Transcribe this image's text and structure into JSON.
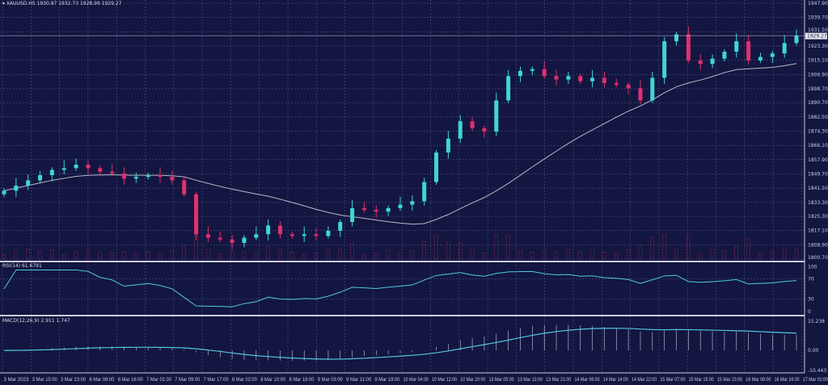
{
  "symbol_header": {
    "symbol": "XAUUSD.HS",
    "ohlc": "1930.87 1932.73 1928.99 1929.27"
  },
  "current_price": "1929.27",
  "rsi_header": "RSI(14) 61.6791",
  "macd_header": "MACD(12,26,9) 2.911 1.747",
  "colors": {
    "background": "#131640",
    "bull": "#3fd6d6",
    "bear": "#e0306e",
    "ma": "#b8b8c8",
    "indicator_line": "#4fc8e0",
    "grid": "#5a6090"
  },
  "chart_data": {
    "type": "candlestick",
    "price_axis": {
      "ylim": [
        1800.7,
        1947.9
      ],
      "ticks": [
        "1947.90",
        "1939.70",
        "1931.50",
        "1923.30",
        "1915.10",
        "1906.90",
        "1898.70",
        "1890.70",
        "1882.50",
        "1874.30",
        "1866.10",
        "1857.90",
        "1849.70",
        "1841.50",
        "1833.30",
        "1825.30",
        "1817.10",
        "1808.90",
        "1800.70"
      ]
    },
    "time_axis": {
      "ticks": [
        "3 Mar 2023",
        "3 Mar 15:00",
        "3 Mar 23:00",
        "6 Mar 08:00",
        "6 Mar 16:00",
        "7 Mar 01:00",
        "7 Mar 09:00",
        "7 Mar 17:00",
        "8 Mar 02:00",
        "8 Mar 10:00",
        "8 Mar 18:00",
        "9 Mar 03:00",
        "9 Mar 11:00",
        "9 Mar 19:00",
        "10 Mar 04:00",
        "10 Mar 12:00",
        "10 Mar 20:00",
        "13 Mar 05:00",
        "13 Mar 13:00",
        "13 Mar 21:00",
        "14 Mar 06:00",
        "14 Mar 14:00",
        "14 Mar 22:00",
        "15 Mar 07:00",
        "15 Mar 15:00",
        "15 Mar 23:00",
        "16 Mar 08:00",
        "16 Mar 16:00",
        "17 Mar 01:00"
      ]
    },
    "closes": [
      1840,
      1843,
      1846,
      1849,
      1852,
      1853,
      1855,
      1853,
      1851,
      1850,
      1847,
      1848,
      1849,
      1848,
      1846,
      1838,
      1815,
      1813,
      1812,
      1810,
      1813,
      1815,
      1820,
      1815,
      1814,
      1815,
      1814,
      1817,
      1822,
      1830,
      1829,
      1828,
      1830,
      1832,
      1834,
      1845,
      1862,
      1870,
      1880,
      1876,
      1874,
      1892,
      1906,
      1909,
      1910,
      1906,
      1904,
      1906,
      1903,
      1905,
      1902,
      1901,
      1899,
      1892,
      1905,
      1926,
      1930,
      1915,
      1913,
      1916,
      1920,
      1926,
      1915,
      1917,
      1919,
      1925,
      1929.27
    ],
    "rsi_axis": {
      "ylim": [
        0,
        100
      ],
      "ticks": [
        "100",
        "70",
        "30",
        "0"
      ]
    },
    "macd_axis": {
      "ylim": [
        -10.443,
        15.238
      ],
      "ticks": [
        "15.238",
        "0.00",
        "-10.443"
      ]
    },
    "moving_average_period": 20
  }
}
